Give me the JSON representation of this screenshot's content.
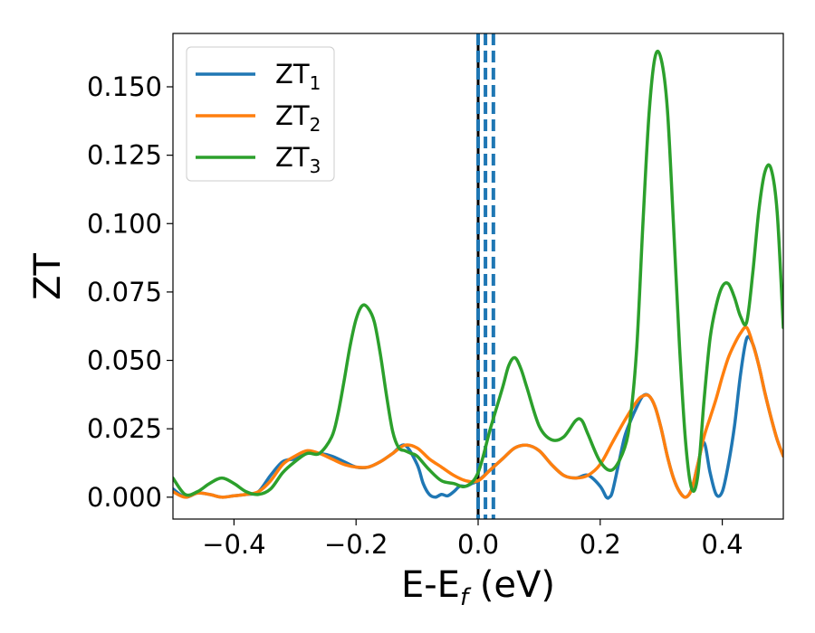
{
  "chart_data": {
    "type": "line",
    "xlabel": "E-E",
    "xlabel_sub": "f",
    "xlabel_unit": " (eV)",
    "ylabel": "ZT",
    "xlim": [
      -0.5,
      0.5
    ],
    "ylim": [
      -0.008,
      0.1695
    ],
    "xticks": [
      -0.4,
      -0.2,
      0.0,
      0.2,
      0.4
    ],
    "xtick_labels": [
      "−0.4",
      "−0.2",
      "0.0",
      "0.2",
      "0.4"
    ],
    "yticks": [
      0.0,
      0.025,
      0.05,
      0.075,
      0.1,
      0.125,
      0.15
    ],
    "ytick_labels": [
      "0.000",
      "0.025",
      "0.050",
      "0.075",
      "0.100",
      "0.125",
      "0.150"
    ],
    "grid": false,
    "legend_position": "top-left",
    "vertical_lines": [
      {
        "x": 0.0,
        "color": "#000000",
        "style": "solid"
      },
      {
        "x": 0.0,
        "color": "#1f77b4",
        "style": "dashed"
      },
      {
        "x": 0.012,
        "color": "#1f77b4",
        "style": "dashed"
      },
      {
        "x": 0.025,
        "color": "#1f77b4",
        "style": "dashed"
      }
    ],
    "series": [
      {
        "name": "ZT",
        "sub": "1",
        "color": "#1f77b4",
        "x": [
          -0.5,
          -0.48,
          -0.46,
          -0.44,
          -0.42,
          -0.4,
          -0.38,
          -0.36,
          -0.34,
          -0.32,
          -0.3,
          -0.28,
          -0.26,
          -0.24,
          -0.22,
          -0.2,
          -0.18,
          -0.16,
          -0.14,
          -0.12,
          -0.1,
          -0.09,
          -0.08,
          -0.07,
          -0.06,
          -0.05,
          -0.04,
          -0.03,
          -0.02,
          -0.01,
          0.0,
          0.02,
          0.04,
          0.06,
          0.08,
          0.1,
          0.12,
          0.14,
          0.16,
          0.18,
          0.2,
          0.21,
          0.215,
          0.22,
          0.23,
          0.24,
          0.25,
          0.26,
          0.27,
          0.28,
          0.29,
          0.3,
          0.31,
          0.32,
          0.33,
          0.34,
          0.35,
          0.36,
          0.37,
          0.38,
          0.39,
          0.4,
          0.41,
          0.42,
          0.43,
          0.44,
          0.45,
          0.46,
          0.47,
          0.48,
          0.49,
          0.5
        ],
        "y": [
          0.003,
          0.0,
          0.0015,
          0.001,
          0.0,
          0.0005,
          0.001,
          0.002,
          0.008,
          0.013,
          0.014,
          0.016,
          0.016,
          0.015,
          0.013,
          0.011,
          0.011,
          0.013,
          0.016,
          0.019,
          0.012,
          0.005,
          0.001,
          0.0,
          0.001,
          0.0005,
          0.002,
          0.004,
          0.004,
          0.005,
          0.006,
          0.01,
          0.014,
          0.018,
          0.019,
          0.017,
          0.012,
          0.008,
          0.007,
          0.008,
          0.004,
          0.0,
          0.0,
          0.002,
          0.012,
          0.022,
          0.028,
          0.033,
          0.037,
          0.037,
          0.033,
          0.025,
          0.015,
          0.007,
          0.002,
          0.0,
          0.003,
          0.012,
          0.02,
          0.009,
          0.001,
          0.002,
          0.012,
          0.026,
          0.045,
          0.058,
          0.056,
          0.048,
          0.038,
          0.029,
          0.021,
          0.015
        ]
      },
      {
        "name": "ZT",
        "sub": "2",
        "color": "#ff7f0e",
        "x": [
          -0.5,
          -0.48,
          -0.46,
          -0.44,
          -0.42,
          -0.4,
          -0.38,
          -0.36,
          -0.34,
          -0.32,
          -0.3,
          -0.28,
          -0.26,
          -0.24,
          -0.22,
          -0.2,
          -0.18,
          -0.16,
          -0.14,
          -0.12,
          -0.1,
          -0.08,
          -0.06,
          -0.04,
          -0.02,
          0.0,
          0.02,
          0.04,
          0.06,
          0.08,
          0.1,
          0.12,
          0.14,
          0.16,
          0.18,
          0.2,
          0.22,
          0.24,
          0.26,
          0.27,
          0.28,
          0.29,
          0.3,
          0.31,
          0.32,
          0.33,
          0.34,
          0.35,
          0.36,
          0.37,
          0.38,
          0.39,
          0.4,
          0.41,
          0.42,
          0.43,
          0.44,
          0.45,
          0.46,
          0.47,
          0.48,
          0.49,
          0.5
        ],
        "y": [
          0.002,
          0.0,
          0.0015,
          0.001,
          0.0,
          0.0005,
          0.001,
          0.002,
          0.006,
          0.012,
          0.015,
          0.017,
          0.016,
          0.014,
          0.012,
          0.011,
          0.011,
          0.013,
          0.016,
          0.019,
          0.018,
          0.014,
          0.011,
          0.008,
          0.006,
          0.006,
          0.01,
          0.014,
          0.018,
          0.019,
          0.017,
          0.012,
          0.008,
          0.007,
          0.008,
          0.012,
          0.02,
          0.028,
          0.035,
          0.037,
          0.037,
          0.033,
          0.025,
          0.015,
          0.007,
          0.002,
          0.0,
          0.003,
          0.012,
          0.022,
          0.029,
          0.036,
          0.044,
          0.051,
          0.056,
          0.06,
          0.062,
          0.056,
          0.048,
          0.038,
          0.029,
          0.021,
          0.015
        ]
      },
      {
        "name": "ZT",
        "sub": "3",
        "color": "#2ca02c",
        "x": [
          -0.5,
          -0.48,
          -0.46,
          -0.44,
          -0.42,
          -0.4,
          -0.38,
          -0.36,
          -0.34,
          -0.32,
          -0.3,
          -0.28,
          -0.26,
          -0.24,
          -0.23,
          -0.22,
          -0.21,
          -0.2,
          -0.19,
          -0.18,
          -0.17,
          -0.16,
          -0.15,
          -0.14,
          -0.13,
          -0.12,
          -0.11,
          -0.1,
          -0.08,
          -0.06,
          -0.04,
          -0.02,
          0.0,
          0.02,
          0.04,
          0.05,
          0.06,
          0.07,
          0.08,
          0.1,
          0.12,
          0.14,
          0.16,
          0.17,
          0.18,
          0.2,
          0.22,
          0.24,
          0.25,
          0.26,
          0.27,
          0.28,
          0.29,
          0.3,
          0.31,
          0.32,
          0.33,
          0.34,
          0.35,
          0.36,
          0.37,
          0.38,
          0.39,
          0.4,
          0.41,
          0.42,
          0.43,
          0.44,
          0.45,
          0.46,
          0.47,
          0.48,
          0.49,
          0.5
        ],
        "y": [
          0.007,
          0.001,
          0.002,
          0.005,
          0.007,
          0.005,
          0.002,
          0.001,
          0.003,
          0.009,
          0.013,
          0.016,
          0.016,
          0.022,
          0.03,
          0.042,
          0.055,
          0.065,
          0.07,
          0.069,
          0.064,
          0.052,
          0.037,
          0.024,
          0.018,
          0.017,
          0.016,
          0.015,
          0.01,
          0.006,
          0.005,
          0.004,
          0.009,
          0.025,
          0.04,
          0.048,
          0.051,
          0.047,
          0.04,
          0.026,
          0.021,
          0.022,
          0.028,
          0.028,
          0.023,
          0.013,
          0.01,
          0.018,
          0.03,
          0.055,
          0.1,
          0.14,
          0.161,
          0.16,
          0.142,
          0.1,
          0.055,
          0.02,
          0.003,
          0.008,
          0.035,
          0.058,
          0.07,
          0.077,
          0.078,
          0.073,
          0.066,
          0.064,
          0.082,
          0.105,
          0.119,
          0.12,
          0.104,
          0.062
        ]
      }
    ]
  }
}
